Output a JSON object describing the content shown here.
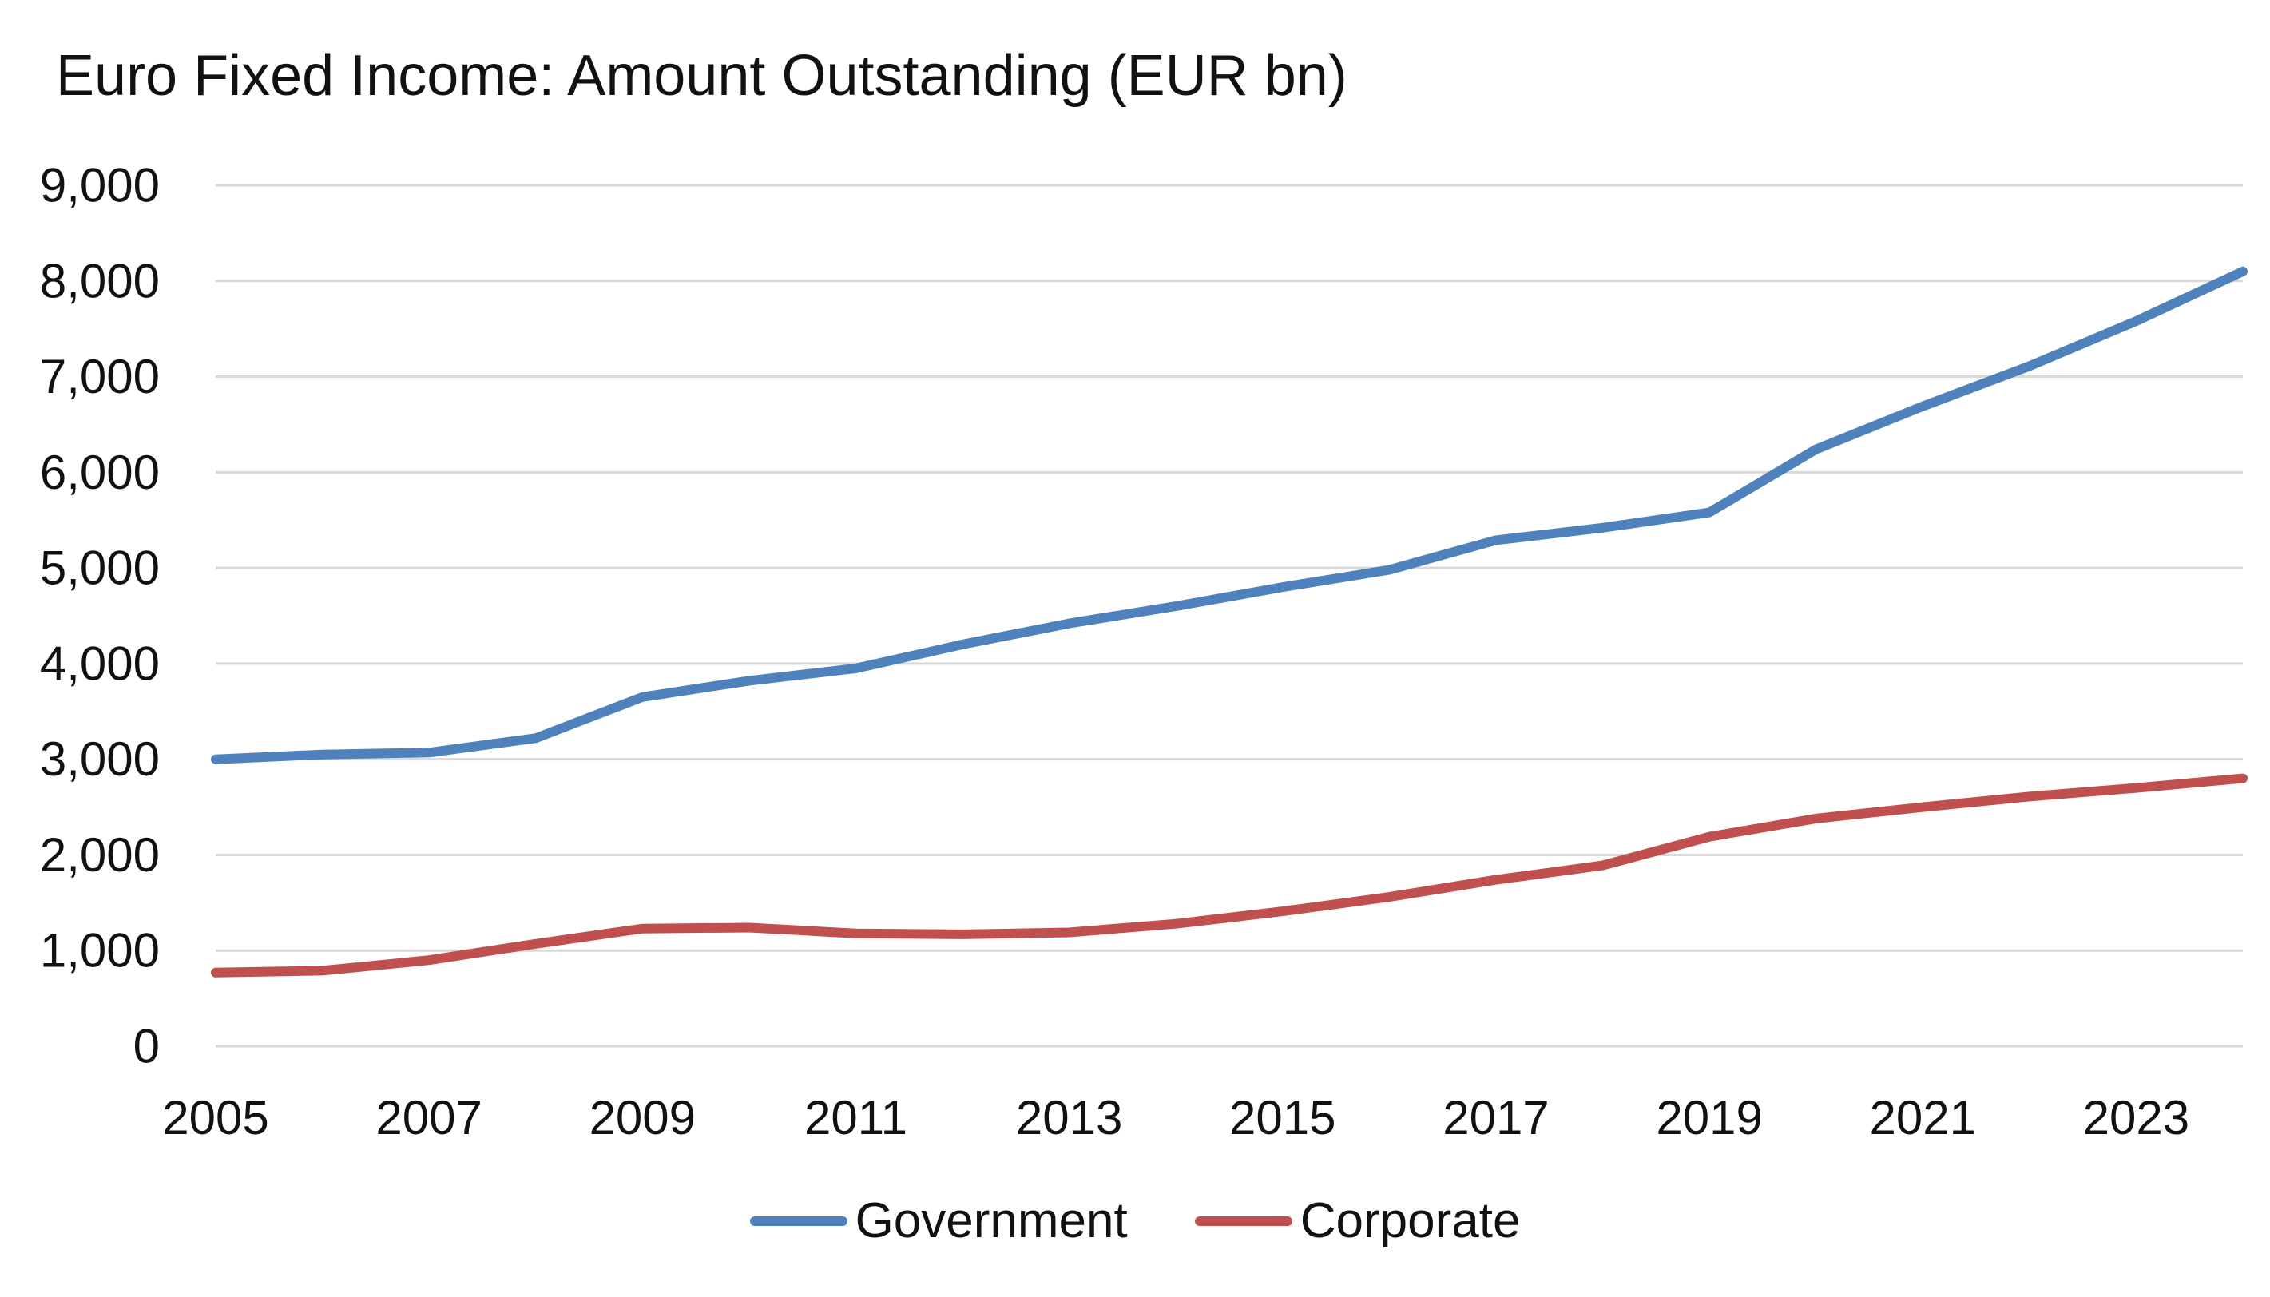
{
  "chart_data": {
    "type": "line",
    "title": "Euro Fixed Income: Amount Outstanding (EUR bn)",
    "xlabel": "",
    "ylabel": "",
    "ylim": [
      0,
      9000
    ],
    "xlim": [
      2005,
      2024
    ],
    "yticks": [
      0,
      1000,
      2000,
      3000,
      4000,
      5000,
      6000,
      7000,
      8000,
      9000
    ],
    "ytick_labels": [
      "0",
      "1,000",
      "2,000",
      "3,000",
      "4,000",
      "5,000",
      "6,000",
      "7,000",
      "8,000",
      "9,000"
    ],
    "xticks": [
      2005,
      2007,
      2009,
      2011,
      2013,
      2015,
      2017,
      2019,
      2021,
      2023
    ],
    "xtick_labels": [
      "2005",
      "2007",
      "2009",
      "2011",
      "2013",
      "2015",
      "2017",
      "2019",
      "2021",
      "2023"
    ],
    "grid": "horizontal",
    "legend_position": "bottom",
    "x": [
      2005,
      2006,
      2007,
      2008,
      2009,
      2010,
      2011,
      2012,
      2013,
      2014,
      2015,
      2016,
      2017,
      2018,
      2019,
      2020,
      2021,
      2022,
      2023,
      2024
    ],
    "series": [
      {
        "name": "Government",
        "color": "#4f81bd",
        "values": [
          3000,
          3050,
          3070,
          3220,
          3650,
          3820,
          3950,
          4200,
          4420,
          4600,
          4800,
          4980,
          5290,
          5420,
          5580,
          6240,
          6690,
          7110,
          7580,
          8100
        ]
      },
      {
        "name": "Corporate",
        "color": "#c0504d",
        "values": [
          770,
          790,
          900,
          1070,
          1230,
          1240,
          1180,
          1170,
          1190,
          1280,
          1410,
          1560,
          1740,
          1890,
          2190,
          2380,
          2500,
          2610,
          2700,
          2800
        ]
      }
    ]
  }
}
